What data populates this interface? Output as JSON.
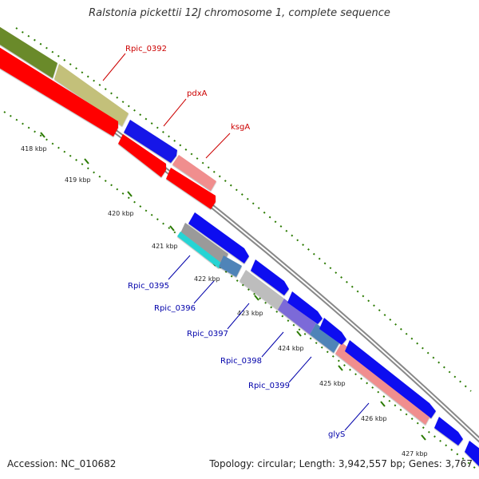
{
  "title": "Ralstonia pickettii 12J chromosome 1, complete sequence",
  "footer": {
    "accession": "Accession: NC_010682",
    "summary": "Topology: circular; Length: 3,942,557 bp; Genes: 3,767"
  },
  "colors": {
    "reverse_strand_label": "#cc0000",
    "forward_strand_label": "#0000aa",
    "backbone": "#888888",
    "ticks": "#2a7a00"
  },
  "kbp_ticks": [
    "418 kbp",
    "419 kbp",
    "420 kbp",
    "421 kbp",
    "422 kbp",
    "423 kbp",
    "424 kbp",
    "425 kbp",
    "426 kbp",
    "427 kbp"
  ],
  "gene_labels": [
    {
      "text": "Rpic_0392",
      "strand": "reverse"
    },
    {
      "text": "pdxA",
      "strand": "reverse"
    },
    {
      "text": "ksgA",
      "strand": "reverse"
    },
    {
      "text": "Rpic_0395",
      "strand": "forward"
    },
    {
      "text": "Rpic_0396",
      "strand": "forward"
    },
    {
      "text": "Rpic_0397",
      "strand": "forward"
    },
    {
      "text": "Rpic_0398",
      "strand": "forward"
    },
    {
      "text": "Rpic_0399",
      "strand": "forward"
    },
    {
      "text": "glyS",
      "strand": "forward"
    }
  ],
  "features": [
    {
      "name": "Rpic_0392 COG band",
      "color": "#6b8a2a"
    },
    {
      "name": "Rpic_0392 COG band",
      "color": "#c3c07a"
    },
    {
      "name": "pdxA COG band",
      "color": "#1414e8"
    },
    {
      "name": "ksgA COG band",
      "color": "#f08e8e"
    },
    {
      "name": "Rpic_0392 CDS",
      "color": "#ff0000"
    },
    {
      "name": "pdxA CDS",
      "color": "#ff0000"
    },
    {
      "name": "ksgA CDS",
      "color": "#ff0000"
    },
    {
      "name": "Rpic_0395 COG band",
      "color": "#9a9a9a"
    },
    {
      "name": "Rpic_0395 COG band",
      "color": "#28d4d4"
    },
    {
      "name": "Rpic_0396 COG band",
      "color": "#4f84b8"
    },
    {
      "name": "Rpic_0397 COG band",
      "color": "#bdbdbd"
    },
    {
      "name": "Rpic_0398 COG band",
      "color": "#7b6ad8"
    },
    {
      "name": "Rpic_0399 COG band",
      "color": "#4f84b8"
    },
    {
      "name": "glyS COG band",
      "color": "#f08e8e"
    },
    {
      "name": "Rpic_0395 CDS",
      "color": "#1010f0"
    },
    {
      "name": "Rpic_0396 CDS",
      "color": "#1010f0"
    },
    {
      "name": "Rpic_0397 CDS",
      "color": "#1010f0"
    },
    {
      "name": "Rpic_0398 CDS",
      "color": "#1010f0"
    },
    {
      "name": "Rpic_0399 CDS",
      "color": "#1010f0"
    },
    {
      "name": "glyS CDS",
      "color": "#1010f0"
    },
    {
      "name": "next CDS",
      "color": "#1010f0"
    }
  ]
}
